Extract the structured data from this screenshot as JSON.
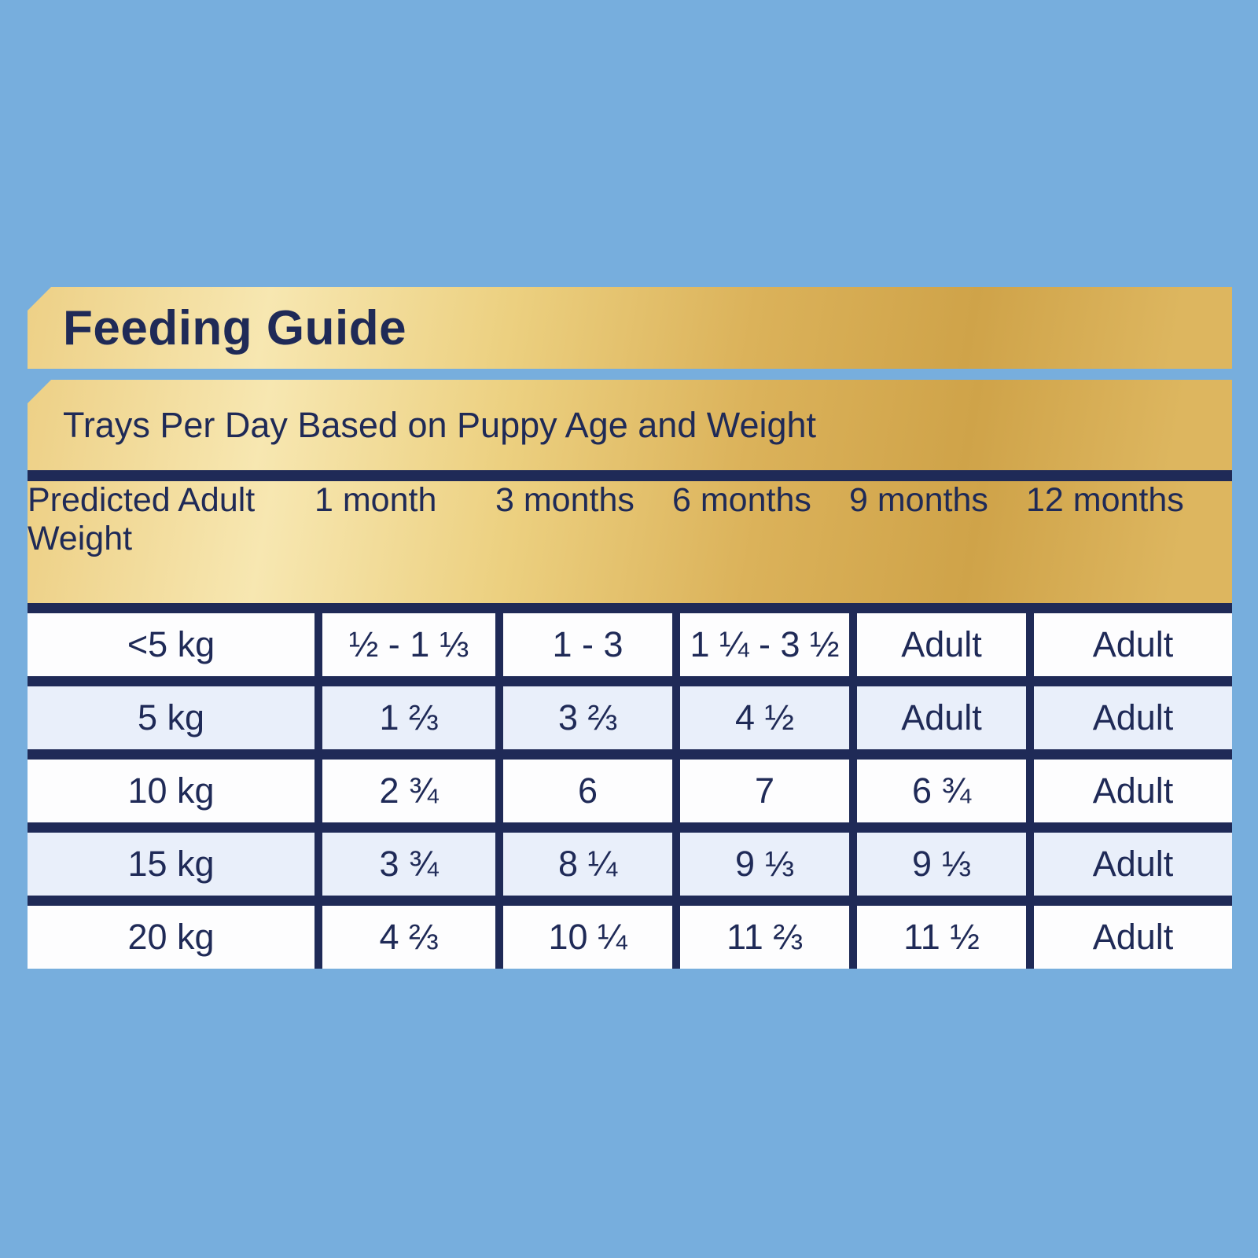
{
  "page": {
    "background_color": "#77aedd",
    "accent_gold_light": "#f7e7b1",
    "accent_gold_dark": "#cfa349",
    "navy": "#1f2a57",
    "row_alt_color": "#e9effa"
  },
  "banner": {
    "title": "Feeding Guide"
  },
  "subtitle": "Trays Per Day Based on Puppy Age and Weight",
  "table": {
    "headers": {
      "col0": "Predicted\nAdult Weight",
      "col1": "1\nmonth",
      "col2": "3\nmonths",
      "col3": "6\nmonths",
      "col4": "9\nmonths",
      "col5": "12\nmonths"
    },
    "rows": [
      {
        "cells": [
          "<5 kg",
          "½ - 1 ⅓",
          "1 - 3",
          "1 ¼ - 3 ½",
          "Adult",
          "Adult"
        ]
      },
      {
        "cells": [
          "5 kg",
          "1 ⅔",
          "3 ⅔",
          "4 ½",
          "Adult",
          "Adult"
        ]
      },
      {
        "cells": [
          "10 kg",
          "2 ¾",
          "6",
          "7",
          "6 ¾",
          "Adult"
        ]
      },
      {
        "cells": [
          "15 kg",
          "3 ¾",
          "8 ¼",
          "9 ⅓",
          "9 ⅓",
          "Adult"
        ]
      },
      {
        "cells": [
          "20 kg",
          "4 ⅔",
          "10 ¼",
          "11 ⅔",
          "11 ½",
          "Adult"
        ]
      }
    ]
  },
  "chart_data": {
    "type": "table",
    "title": "Feeding Guide",
    "subtitle": "Trays Per Day Based on Puppy Age and Weight",
    "columns": [
      "Predicted Adult Weight",
      "1 month",
      "3 months",
      "6 months",
      "9 months",
      "12 months"
    ],
    "rows": [
      [
        "<5 kg",
        "½ - 1 ⅓",
        "1 - 3",
        "1 ¼ - 3 ½",
        "Adult",
        "Adult"
      ],
      [
        "5 kg",
        "1 ⅔",
        "3 ⅔",
        "4 ½",
        "Adult",
        "Adult"
      ],
      [
        "10 kg",
        "2 ¾",
        "6",
        "7",
        "6 ¾",
        "Adult"
      ],
      [
        "15 kg",
        "3 ¾",
        "8 ¼",
        "9 ⅓",
        "9 ⅓",
        "Adult"
      ],
      [
        "20 kg",
        "4 ⅔",
        "10 ¼",
        "11 ⅔",
        "11 ½",
        "Adult"
      ]
    ]
  }
}
